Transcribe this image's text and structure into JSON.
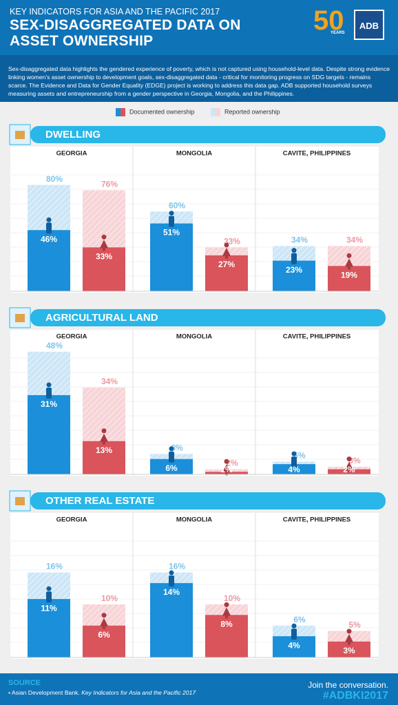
{
  "header": {
    "kicker": "KEY INDICATORS FOR ASIA AND THE PACIFIC 2017",
    "title": "SEX-DISAGGREGATED DATA ON ASSET OWNERSHIP",
    "anniversary": "50",
    "anniversary_caption": "YEARS",
    "logo": "ADB"
  },
  "intro": "Sex-disaggregated data highlights the gendered experience of poverty, which is not captured using household-level data. Despite strong evidence linking women's asset ownership to development goals, sex-disaggregated data - critical for monitoring progress on SDG targets - remains scarce. The Evidence and Data for Gender Equality (EDGE) project is working to address this data gap.  ADB supported household surveys measuring assets and entrepreneurship from a gender perspective in Georgia, Mongolia, and the Philippines.",
  "legend": [
    "Documented ownership",
    "Reported ownership"
  ],
  "chart_data": [
    {
      "type": "bar",
      "title": "DWELLING",
      "ylim": [
        0,
        100
      ],
      "colors": [
        "#1b8fd9",
        "#d9545b"
      ],
      "reported_colors": [
        "#cde6f7",
        "#f7d4d7"
      ],
      "panels": [
        {
          "title": "GEORGIA",
          "documented": {
            "values": [
              46,
              33
            ],
            "value_labels": [
              "46%",
              "33%"
            ]
          },
          "reported": {
            "values": [
              80,
              76
            ],
            "value_labels": [
              "80%",
              "76%"
            ]
          }
        },
        {
          "title": "MONGOLIA",
          "documented": {
            "values": [
              51,
              27
            ],
            "value_labels": [
              "51%",
              "27%"
            ]
          },
          "reported": {
            "values": [
              60,
              33
            ],
            "value_labels": [
              "60%",
              "33%"
            ]
          }
        },
        {
          "title": "CAVITE, PHILIPPINES",
          "documented": {
            "values": [
              23,
              19
            ],
            "value_labels": [
              "23%",
              "19%"
            ]
          },
          "reported": {
            "values": [
              34,
              34
            ],
            "value_labels": [
              "34%",
              "34%"
            ]
          }
        }
      ]
    },
    {
      "type": "bar",
      "title": "AGRICULTURAL LAND",
      "ylim": [
        0,
        52
      ],
      "colors": [
        "#1b8fd9",
        "#d9545b"
      ],
      "reported_colors": [
        "#cde6f7",
        "#f7d4d7"
      ],
      "panels": [
        {
          "title": "GEORGIA",
          "documented": {
            "values": [
              31,
              13
            ],
            "value_labels": [
              "31%",
              "13%"
            ]
          },
          "reported": {
            "values": [
              48,
              34
            ],
            "value_labels": [
              "48%",
              "34%"
            ]
          }
        },
        {
          "title": "MONGOLIA",
          "documented": {
            "values": [
              6,
              1
            ],
            "value_labels": [
              "6%",
              "1%"
            ]
          },
          "reported": {
            "values": [
              8,
              2
            ],
            "value_labels": [
              "8%",
              "2%"
            ]
          }
        },
        {
          "title": "CAVITE, PHILIPPINES",
          "documented": {
            "values": [
              4,
              2
            ],
            "value_labels": [
              "4%",
              "2%"
            ]
          },
          "reported": {
            "values": [
              5,
              3
            ],
            "value_labels": [
              "5%",
              "3%"
            ]
          }
        }
      ]
    },
    {
      "type": "bar",
      "title": "OTHER REAL ESTATE",
      "ylim": [
        0,
        25
      ],
      "colors": [
        "#1b8fd9",
        "#d9545b"
      ],
      "reported_colors": [
        "#cde6f7",
        "#f7d4d7"
      ],
      "panels": [
        {
          "title": "GEORGIA",
          "documented": {
            "values": [
              11,
              6
            ],
            "value_labels": [
              "11%",
              "6%"
            ]
          },
          "reported": {
            "values": [
              16,
              10
            ],
            "value_labels": [
              "16%",
              "10%"
            ]
          }
        },
        {
          "title": "MONGOLIA",
          "documented": {
            "values": [
              14,
              8
            ],
            "value_labels": [
              "14%",
              "8%"
            ]
          },
          "reported": {
            "values": [
              16,
              10
            ],
            "value_labels": [
              "16%",
              "10%"
            ]
          }
        },
        {
          "title": "CAVITE, PHILIPPINES",
          "documented": {
            "values": [
              4,
              3
            ],
            "value_labels": [
              "4%",
              "3%"
            ]
          },
          "reported": {
            "values": [
              6,
              5
            ],
            "value_labels": [
              "6%",
              "5%"
            ]
          }
        }
      ]
    }
  ],
  "footer": {
    "source_label": "SOURCE",
    "source": "Asian Development Bank.",
    "source_title": "Key Indicators for Asia and the Pacific 2017",
    "cta": "Join the conversation.",
    "hashtag": "#ADBKI2017"
  }
}
